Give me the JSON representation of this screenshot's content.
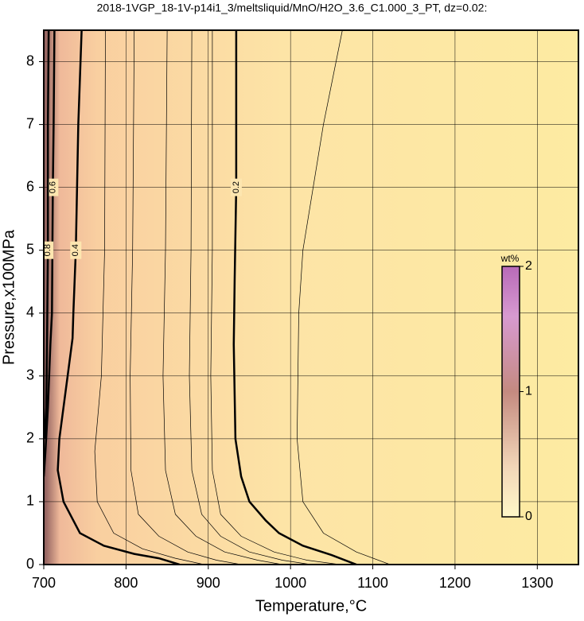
{
  "chart_data": {
    "type": "contour",
    "title": "2018-1VGP_18-1V-p14i1_3/meltsliquid/MnO/H2O_3.6_C1.000_3_PT, dz=0.02:",
    "xlabel": "Temperature,°C",
    "ylabel": "Pressure,x100MPa",
    "xlim": [
      700,
      1350
    ],
    "xticks": [
      700,
      800,
      900,
      1000,
      1100,
      1200,
      1300
    ],
    "ylim": [
      0,
      8.5
    ],
    "yticks": [
      0,
      1,
      2,
      3,
      4,
      5,
      6,
      7,
      8
    ],
    "grid": true,
    "colorbar": {
      "label": "wt%",
      "lim": [
        0,
        2
      ],
      "ticks": [
        0,
        1,
        2
      ]
    },
    "contours": [
      {
        "level": 0.2,
        "x": [
          934,
          934,
          932,
          931,
          933,
          940,
          950,
          970,
          986,
          1015,
          1050,
          1080
        ],
        "y": [
          8.5,
          6,
          4.5,
          3.5,
          2,
          1.4,
          1,
          0.7,
          0.5,
          0.3,
          0.15,
          0
        ]
      },
      {
        "level": 0.4,
        "x": [
          746,
          742,
          739,
          736,
          735,
          729,
          719,
          717,
          724,
          744,
          773,
          810,
          840,
          865
        ],
        "y": [
          8.5,
          7,
          5,
          4,
          3.6,
          3,
          2,
          1.5,
          1,
          0.5,
          0.3,
          0.17,
          0.1,
          0
        ]
      },
      {
        "level": 0.6,
        "x": [
          713,
          712,
          711,
          710,
          708,
          705,
          702,
          700
        ],
        "y": [
          8.5,
          7,
          6,
          4,
          3.5,
          2.5,
          1.8,
          1.4
        ]
      },
      {
        "level": 0.8,
        "x": [
          706,
          705,
          705,
          704,
          703,
          701
        ],
        "y": [
          8.5,
          7,
          5,
          3.5,
          2.5,
          2
        ]
      },
      {
        "level": 0.18,
        "x": [
          1063,
          1040,
          1015,
          1010,
          1008,
          1015,
          1040,
          1080,
          1121
        ],
        "y": [
          8.5,
          7,
          5,
          4,
          2,
          1,
          0.5,
          0.2,
          0
        ]
      },
      {
        "level": 0.22,
        "x": [
          905,
          905,
          903,
          905,
          915,
          940,
          980,
          1020,
          1060
        ],
        "y": [
          8.5,
          5,
          3,
          1.5,
          0.8,
          0.45,
          0.2,
          0.07,
          0
        ]
      },
      {
        "level": 0.24,
        "x": [
          880,
          879,
          877,
          880,
          892,
          915,
          950,
          990,
          1025
        ],
        "y": [
          8.5,
          5,
          3,
          1.5,
          0.8,
          0.45,
          0.2,
          0.07,
          0
        ]
      },
      {
        "level": 0.28,
        "x": [
          850,
          848,
          845,
          848,
          860,
          885,
          920,
          960,
          990
        ],
        "y": [
          8.5,
          5,
          3,
          1.5,
          0.8,
          0.45,
          0.2,
          0.07,
          0
        ]
      },
      {
        "level": 0.32,
        "x": [
          810,
          808,
          805,
          806,
          815,
          840,
          875,
          910,
          940
        ],
        "y": [
          8.5,
          5,
          3,
          1.5,
          0.8,
          0.45,
          0.2,
          0.07,
          0
        ]
      },
      {
        "level": 0.36,
        "x": [
          775,
          774,
          770,
          762,
          765,
          785,
          820,
          860,
          895
        ],
        "y": [
          8.5,
          5,
          3,
          1.8,
          1,
          0.5,
          0.25,
          0.1,
          0
        ]
      }
    ]
  }
}
